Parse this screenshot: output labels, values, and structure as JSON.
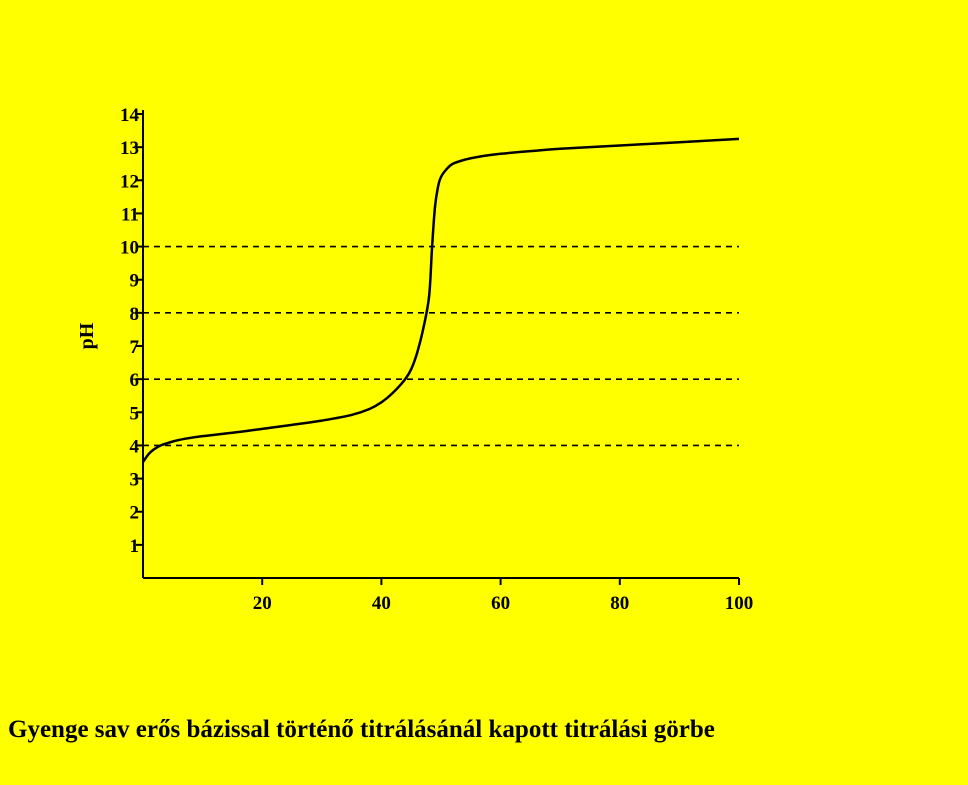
{
  "page": {
    "background": "#ffff00"
  },
  "caption": "Gyenge sav erős bázissal történő titrálásánál kapott titrálási görbe",
  "chart_data": {
    "type": "line",
    "title": "",
    "xlabel": "",
    "ylabel": "pH",
    "xlim": [
      0,
      100
    ],
    "ylim": [
      0,
      14
    ],
    "x_ticks": [
      20,
      40,
      60,
      80,
      100
    ],
    "y_ticks": [
      1,
      2,
      3,
      4,
      5,
      6,
      7,
      8,
      9,
      10,
      11,
      12,
      13,
      14
    ],
    "grid": false,
    "reference_lines_y": [
      4,
      6,
      8,
      10
    ],
    "line_color": "#000000",
    "series": [
      {
        "name": "",
        "x": [
          0,
          1,
          2,
          3,
          5,
          7,
          10,
          15,
          20,
          25,
          30,
          35,
          38,
          40,
          42,
          44,
          45,
          46,
          47,
          48,
          48.5,
          49,
          49.5,
          50,
          51,
          52,
          54,
          56,
          60,
          65,
          70,
          80,
          90,
          100
        ],
        "y": [
          3.5,
          3.75,
          3.9,
          4.0,
          4.12,
          4.2,
          4.28,
          4.38,
          4.5,
          4.62,
          4.75,
          4.92,
          5.1,
          5.3,
          5.6,
          6.0,
          6.3,
          6.8,
          7.5,
          8.5,
          10.0,
          11.2,
          11.8,
          12.1,
          12.35,
          12.5,
          12.62,
          12.7,
          12.8,
          12.88,
          12.95,
          13.05,
          13.15,
          13.25
        ]
      }
    ]
  }
}
